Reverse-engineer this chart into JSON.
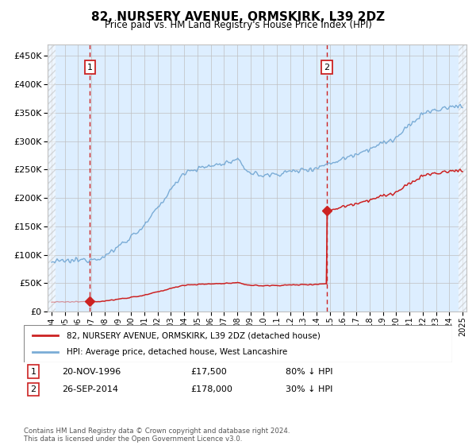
{
  "title": "82, NURSERY AVENUE, ORMSKIRK, L39 2DZ",
  "subtitle": "Price paid vs. HM Land Registry's House Price Index (HPI)",
  "ylim": [
    0,
    470000
  ],
  "yticks": [
    0,
    50000,
    100000,
    150000,
    200000,
    250000,
    300000,
    350000,
    400000,
    450000
  ],
  "xstart_year": 1994,
  "xend_year": 2025,
  "hpi_color": "#7aacd6",
  "price_color": "#cc2222",
  "bg_color": "#ddeeff",
  "sale1_year": 1996.9,
  "sale1_price": 17500,
  "sale2_year": 2014.75,
  "sale2_price": 178000,
  "legend_label1": "82, NURSERY AVENUE, ORMSKIRK, L39 2DZ (detached house)",
  "legend_label2": "HPI: Average price, detached house, West Lancashire",
  "annotation1_date": "20-NOV-1996",
  "annotation1_price": "£17,500",
  "annotation1_pct": "80% ↓ HPI",
  "annotation2_date": "26-SEP-2014",
  "annotation2_price": "£178,000",
  "annotation2_pct": "30% ↓ HPI",
  "footer": "Contains HM Land Registry data © Crown copyright and database right 2024.\nThis data is licensed under the Open Government Licence v3.0.",
  "grid_color": "#c0c0c0",
  "hatch_color": "#bbbbbb",
  "number_box_color": "#cc2222"
}
